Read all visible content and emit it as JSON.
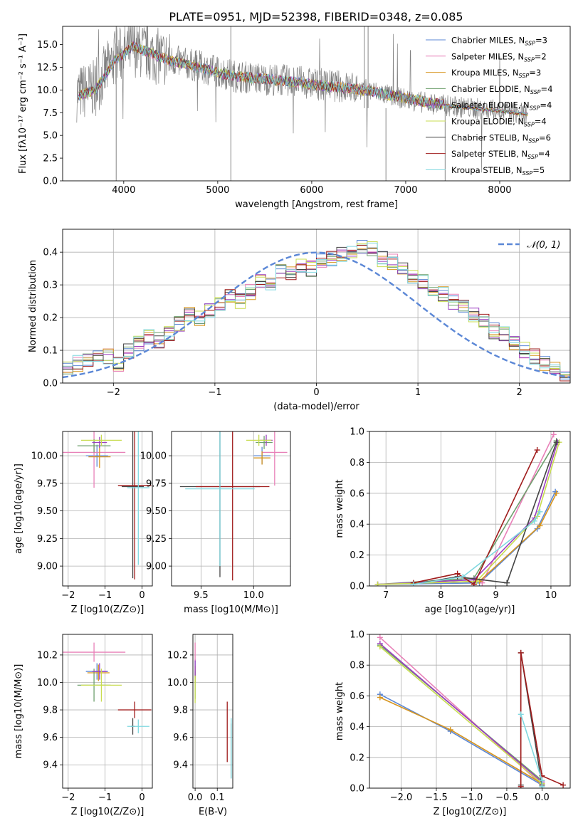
{
  "figure": {
    "title": "PLATE=0951, MJD=52398, FIBERID=0348, z=0.085"
  },
  "series": [
    {
      "name": "Chabrier MILES",
      "nssp": "3",
      "color": "#5b87d6"
    },
    {
      "name": "Salpeter MILES",
      "nssp": "2",
      "color": "#e880b8"
    },
    {
      "name": "Kroupa MILES",
      "nssp": "3",
      "color": "#d7951e"
    },
    {
      "name": "Chabrier ELODIE",
      "nssp": "4",
      "color": "#6fa06e"
    },
    {
      "name": "Salpeter ELODIE",
      "nssp": "4",
      "color": "#9b3fc0"
    },
    {
      "name": "Kroupa ELODIE",
      "nssp": "4",
      "color": "#c8dc50"
    },
    {
      "name": "Chabrier STELIB",
      "nssp": "6",
      "color": "#444444"
    },
    {
      "name": "Salpeter STELIB",
      "nssp": "4",
      "color": "#a01c1c"
    },
    {
      "name": "Kroupa STELIB",
      "nssp": "5",
      "color": "#80d8e0"
    }
  ],
  "chart_data": [
    {
      "id": "spectrum",
      "type": "line",
      "xlabel": "wavelength [Angstrom, rest frame]",
      "ylabel": "Flux [fλ10⁻¹⁷ erg cm⁻² s⁻¹ A⁻¹]",
      "xlim": [
        3350,
        8750
      ],
      "ylim": [
        0,
        17
      ],
      "xticks": [
        4000,
        5000,
        6000,
        7000,
        8000
      ],
      "yticks": [
        0.0,
        2.5,
        5.0,
        7.5,
        10.0,
        12.5,
        15.0
      ],
      "grid": false,
      "legend": "top-right",
      "data_trend": {
        "x": [
          3500,
          3700,
          3900,
          4100,
          4300,
          4500,
          4800,
          5000,
          5200,
          5500,
          5800,
          6000,
          6300,
          6600,
          6900,
          7200,
          7500,
          7800,
          8100,
          8300
        ],
        "y": [
          9.6,
          10.2,
          13.5,
          14.6,
          13.9,
          13.3,
          12.6,
          12.0,
          11.5,
          11.2,
          11.0,
          10.7,
          10.4,
          10.0,
          9.2,
          8.6,
          8.2,
          7.9,
          7.6,
          7.3
        ]
      },
      "model_trend": {
        "x": [
          3500,
          3700,
          3900,
          4100,
          4300,
          4500,
          4800,
          5000,
          5200,
          5500,
          5800,
          6000,
          6300,
          6600,
          6900,
          7200,
          7400
        ],
        "y": [
          9.3,
          10.0,
          13.2,
          14.8,
          14.0,
          13.2,
          12.5,
          11.9,
          11.5,
          11.2,
          10.9,
          10.6,
          10.3,
          9.9,
          9.3,
          8.7,
          8.4
        ]
      }
    },
    {
      "id": "residuals",
      "type": "histogram",
      "xlabel": "(data-model)/error",
      "ylabel": "Normed distribution",
      "xlim": [
        -2.5,
        2.5
      ],
      "ylim": [
        0,
        0.47
      ],
      "xticks": [
        -2,
        -1,
        0,
        1,
        2
      ],
      "yticks": [
        0.0,
        0.1,
        0.2,
        0.3,
        0.4
      ],
      "grid": true,
      "legend": "top-right",
      "reference_curve": {
        "name": "𝒩(0, 1)",
        "mean": 0,
        "sigma": 1
      },
      "bin_width": 0.1,
      "bin_start": -2.5,
      "values": [
        0.04,
        0.06,
        0.07,
        0.08,
        0.08,
        0.06,
        0.1,
        0.12,
        0.14,
        0.13,
        0.15,
        0.18,
        0.21,
        0.2,
        0.22,
        0.24,
        0.27,
        0.25,
        0.28,
        0.31,
        0.3,
        0.34,
        0.33,
        0.36,
        0.35,
        0.37,
        0.38,
        0.39,
        0.4,
        0.42,
        0.41,
        0.38,
        0.37,
        0.35,
        0.33,
        0.31,
        0.29,
        0.27,
        0.25,
        0.23,
        0.21,
        0.19,
        0.16,
        0.15,
        0.12,
        0.1,
        0.08,
        0.06,
        0.04,
        0.03
      ]
    },
    {
      "id": "age-vs-Z",
      "type": "scatter",
      "xlabel": "Z [log10(Z/Z⊙)]",
      "ylabel": "age  [log10(age/yr)]",
      "xlim": [
        -2.15,
        0.28
      ],
      "ylim": [
        8.82,
        10.22
      ],
      "xticks": [
        -2,
        -1,
        0
      ],
      "yticks": [
        9.0,
        9.25,
        9.5,
        9.75,
        10.0
      ],
      "grid": true,
      "points": [
        {
          "s": 0,
          "x": -1.22,
          "y": 10.0,
          "xerr": 0.3,
          "yerr": 0.1
        },
        {
          "s": 1,
          "x": -1.3,
          "y": 10.03,
          "xerr": 0.85,
          "yerr": 0.32
        },
        {
          "s": 2,
          "x": -1.15,
          "y": 9.99,
          "xerr": 0.3,
          "yerr": 0.1
        },
        {
          "s": 3,
          "x": -1.3,
          "y": 10.09,
          "xerr": 0.45,
          "yerr": 0.06
        },
        {
          "s": 4,
          "x": -1.15,
          "y": 10.12,
          "xerr": 0.2,
          "yerr": 0.05
        },
        {
          "s": 5,
          "x": -1.1,
          "y": 10.14,
          "xerr": 0.55,
          "yerr": 0.05
        },
        {
          "s": 6,
          "x": -0.25,
          "y": 9.72,
          "xerr": 0.3,
          "yerr": 0.83
        },
        {
          "s": 7,
          "x": -0.2,
          "y": 9.73,
          "xerr": 0.45,
          "yerr": 0.85
        },
        {
          "s": 8,
          "x": -0.1,
          "y": 9.71,
          "xerr": 0.3,
          "yerr": 0.7
        }
      ]
    },
    {
      "id": "age-vs-mass",
      "type": "scatter",
      "xlabel": "mass [log10(M/M⊙)]",
      "ylabel": "",
      "xlim": [
        9.22,
        10.35
      ],
      "ylim": [
        8.82,
        10.22
      ],
      "xticks": [
        9.5,
        10.0
      ],
      "yticks": [
        9.0,
        9.25,
        9.5,
        9.75,
        10.0
      ],
      "grid": true,
      "points": [
        {
          "s": 0,
          "x": 10.08,
          "y": 10.0,
          "xerr": 0.08,
          "yerr": 0.08
        },
        {
          "s": 1,
          "x": 10.2,
          "y": 10.03,
          "xerr": 0.12,
          "yerr": 0.3
        },
        {
          "s": 2,
          "x": 10.08,
          "y": 9.98,
          "xerr": 0.08,
          "yerr": 0.06
        },
        {
          "s": 3,
          "x": 10.1,
          "y": 10.12,
          "xerr": 0.08,
          "yerr": 0.06
        },
        {
          "s": 4,
          "x": 10.12,
          "y": 10.14,
          "xerr": 0.06,
          "yerr": 0.05
        },
        {
          "s": 5,
          "x": 10.05,
          "y": 10.14,
          "xerr": 0.12,
          "yerr": 0.05
        },
        {
          "s": 6,
          "x": 9.68,
          "y": 9.72,
          "xerr": 0.38,
          "yerr": 0.82
        },
        {
          "s": 7,
          "x": 9.8,
          "y": 9.72,
          "xerr": 0.35,
          "yerr": 0.85
        },
        {
          "s": 8,
          "x": 9.68,
          "y": 9.7,
          "xerr": 0.33,
          "yerr": 0.7
        }
      ]
    },
    {
      "id": "weight-vs-age",
      "type": "line",
      "xlabel": "age  [log10(age/yr)]",
      "ylabel": "mass weight",
      "xlim": [
        6.7,
        10.35
      ],
      "ylim": [
        0,
        1.0
      ],
      "xticks": [
        7,
        8,
        9,
        10
      ],
      "yticks": [
        0.0,
        0.2,
        0.4,
        0.6,
        0.8,
        1.0
      ],
      "grid": true,
      "series": [
        {
          "s": 0,
          "x": [
            6.85,
            8.7,
            9.75,
            10.08
          ],
          "y": [
            0.01,
            0.02,
            0.37,
            0.61
          ]
        },
        {
          "s": 1,
          "x": [
            8.75,
            10.05
          ],
          "y": [
            0.02,
            0.98
          ]
        },
        {
          "s": 2,
          "x": [
            6.85,
            8.7,
            9.8,
            10.1
          ],
          "y": [
            0.01,
            0.03,
            0.39,
            0.6
          ]
        },
        {
          "s": 3,
          "x": [
            6.85,
            8.6,
            10.1
          ],
          "y": [
            0.01,
            0.05,
            0.94
          ]
        },
        {
          "s": 4,
          "x": [
            6.85,
            8.6,
            9.7,
            10.12
          ],
          "y": [
            0.01,
            0.04,
            0.44,
            0.93
          ]
        },
        {
          "s": 5,
          "x": [
            6.85,
            8.65,
            9.75,
            10.15
          ],
          "y": [
            0.01,
            0.03,
            0.45,
            0.93
          ]
        },
        {
          "s": 6,
          "x": [
            7.5,
            8.3,
            9.2,
            10.1
          ],
          "y": [
            0.01,
            0.06,
            0.02,
            0.93
          ]
        },
        {
          "s": 7,
          "x": [
            7.5,
            8.3,
            8.6,
            9.75
          ],
          "y": [
            0.02,
            0.08,
            0.01,
            0.88
          ]
        },
        {
          "s": 8,
          "x": [
            7.5,
            8.4,
            9.7,
            9.8
          ],
          "y": [
            0.01,
            0.06,
            0.42,
            0.48
          ]
        }
      ]
    },
    {
      "id": "mass-vs-Z",
      "type": "scatter",
      "xlabel": "Z [log10(Z/Z⊙)]",
      "ylabel": "mass [log10(M/M⊙)]",
      "xlim": [
        -2.15,
        0.28
      ],
      "ylim": [
        9.23,
        10.35
      ],
      "xticks": [
        -2,
        -1,
        0
      ],
      "yticks": [
        9.4,
        9.6,
        9.8,
        10.0,
        10.2
      ],
      "grid": true,
      "points": [
        {
          "s": 0,
          "x": -1.22,
          "y": 10.08,
          "xerr": 0.3,
          "yerr": 0.06
        },
        {
          "s": 1,
          "x": -1.3,
          "y": 10.22,
          "xerr": 0.85,
          "yerr": 0.07
        },
        {
          "s": 2,
          "x": -1.18,
          "y": 10.07,
          "xerr": 0.3,
          "yerr": 0.06
        },
        {
          "s": 3,
          "x": -1.3,
          "y": 9.98,
          "xerr": 0.45,
          "yerr": 0.12
        },
        {
          "s": 4,
          "x": -1.15,
          "y": 10.08,
          "xerr": 0.2,
          "yerr": 0.06
        },
        {
          "s": 5,
          "x": -1.1,
          "y": 9.98,
          "xerr": 0.55,
          "yerr": 0.12
        },
        {
          "s": 6,
          "x": -0.25,
          "y": 9.68,
          "xerr": 0.05,
          "yerr": 0.06
        },
        {
          "s": 7,
          "x": -0.2,
          "y": 9.8,
          "xerr": 0.45,
          "yerr": 0.06
        },
        {
          "s": 8,
          "x": -0.1,
          "y": 9.68,
          "xerr": 0.3,
          "yerr": 0.05
        }
      ]
    },
    {
      "id": "mass-vs-EBV",
      "type": "scatter",
      "xlabel": "E(B-V)",
      "ylabel": "",
      "xlim": [
        -0.01,
        0.17
      ],
      "ylim": [
        9.23,
        10.35
      ],
      "xticks": [
        0.0,
        0.1
      ],
      "yticks": [
        9.4,
        9.6,
        9.8,
        10.0,
        10.2
      ],
      "grid": true,
      "points": [
        {
          "s": 0,
          "x": 0.0,
          "y": 10.1,
          "xerr": 0.0,
          "yerr": 0.07
        },
        {
          "s": 1,
          "x": 0.0,
          "y": 10.22,
          "xerr": 0.0,
          "yerr": 0.07
        },
        {
          "s": 2,
          "x": 0.0,
          "y": 10.06,
          "xerr": 0.0,
          "yerr": 0.06
        },
        {
          "s": 3,
          "x": 0.0,
          "y": 9.98,
          "xerr": 0.0,
          "yerr": 0.1
        },
        {
          "s": 4,
          "x": 0.0,
          "y": 10.1,
          "xerr": 0.0,
          "yerr": 0.06
        },
        {
          "s": 5,
          "x": 0.0,
          "y": 9.95,
          "xerr": 0.0,
          "yerr": 0.1
        },
        {
          "s": 6,
          "x": 0.163,
          "y": 9.5,
          "xerr": 0.0,
          "yerr": 0.2
        },
        {
          "s": 7,
          "x": 0.145,
          "y": 9.64,
          "xerr": 0.0,
          "yerr": 0.22
        },
        {
          "s": 8,
          "x": 0.163,
          "y": 9.52,
          "xerr": 0.0,
          "yerr": 0.22
        }
      ]
    },
    {
      "id": "weight-vs-Z",
      "type": "line",
      "xlabel": "Z [log10(Z/Z⊙)]",
      "ylabel": "mass weight",
      "xlim": [
        -2.45,
        0.4
      ],
      "ylim": [
        0,
        1.0
      ],
      "xticks": [
        -2.0,
        -1.5,
        -1.0,
        -0.5,
        0.0
      ],
      "yticks": [
        0.0,
        0.2,
        0.4,
        0.6,
        0.8,
        1.0
      ],
      "grid": true,
      "series": [
        {
          "s": 0,
          "x": [
            -2.3,
            -1.3,
            0.0
          ],
          "y": [
            0.61,
            0.37,
            0.02
          ]
        },
        {
          "s": 1,
          "x": [
            -2.3,
            0.0
          ],
          "y": [
            0.98,
            0.02
          ]
        },
        {
          "s": 2,
          "x": [
            -2.3,
            -1.3,
            0.0
          ],
          "y": [
            0.59,
            0.38,
            0.03
          ]
        },
        {
          "s": 3,
          "x": [
            -2.3,
            0.0
          ],
          "y": [
            0.93,
            0.05
          ]
        },
        {
          "s": 4,
          "x": [
            -2.3,
            0.0
          ],
          "y": [
            0.94,
            0.04
          ]
        },
        {
          "s": 5,
          "x": [
            -2.3,
            0.0
          ],
          "y": [
            0.92,
            0.03
          ]
        },
        {
          "s": 6,
          "x": [
            -0.3,
            -0.3,
            0.0
          ],
          "y": [
            0.02,
            0.88,
            0.02
          ]
        },
        {
          "s": 7,
          "x": [
            -0.3,
            -0.3,
            0.0,
            0.3
          ],
          "y": [
            0.01,
            0.88,
            0.08,
            0.02
          ]
        },
        {
          "s": 8,
          "x": [
            -0.3,
            0.0,
            0.0
          ],
          "y": [
            0.48,
            0.05,
            0.01
          ]
        }
      ]
    }
  ]
}
